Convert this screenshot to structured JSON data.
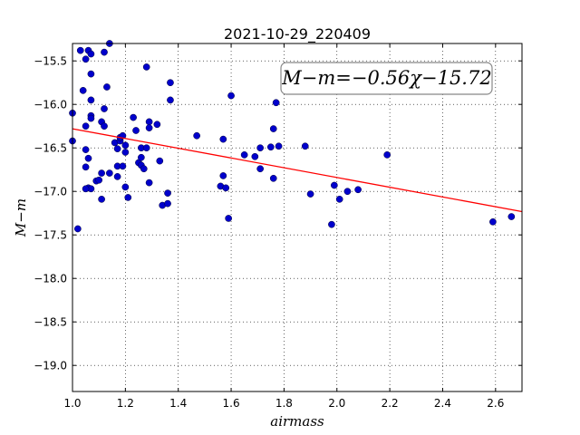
{
  "chart_data": {
    "type": "scatter",
    "title": "2021-10-29_220409",
    "xlabel": "airmass",
    "ylabel": "M−m",
    "xlim": [
      1.0,
      2.7
    ],
    "ylim": [
      -19.3,
      -15.3
    ],
    "y_inverted": true,
    "grid": true,
    "x_ticks": [
      1.0,
      1.2,
      1.4,
      1.6,
      1.8,
      2.0,
      2.2,
      2.4,
      2.6
    ],
    "x_tick_labels": [
      "1.0",
      "1.2",
      "1.4",
      "1.6",
      "1.8",
      "2.0",
      "2.2",
      "2.4",
      "2.6"
    ],
    "y_ticks": [
      -15.5,
      -16.0,
      -16.5,
      -17.0,
      -17.5,
      -18.0,
      -18.5,
      -19.0
    ],
    "y_tick_labels": [
      "−15.5",
      "−16.0",
      "−16.5",
      "−17.0",
      "−17.5",
      "−18.0",
      "−18.5",
      "−19.0"
    ],
    "annotation": "M−m=−0.56χ−15.72",
    "fit_line": {
      "slope": -0.56,
      "intercept": -15.72,
      "color": "#ff0000"
    },
    "point_color": "#0000cc",
    "points": [
      [
        1.0,
        -16.1
      ],
      [
        1.0,
        -16.42
      ],
      [
        1.03,
        -15.38
      ],
      [
        1.05,
        -15.48
      ],
      [
        1.06,
        -15.38
      ],
      [
        1.07,
        -15.42
      ],
      [
        1.12,
        -15.4
      ],
      [
        1.14,
        -15.3
      ],
      [
        1.04,
        -15.84
      ],
      [
        1.07,
        -15.65
      ],
      [
        1.13,
        -15.8
      ],
      [
        1.02,
        -17.43
      ],
      [
        1.07,
        -15.95
      ],
      [
        1.12,
        -16.05
      ],
      [
        1.07,
        -16.13
      ],
      [
        1.07,
        -16.16
      ],
      [
        1.11,
        -16.2
      ],
      [
        1.12,
        -16.25
      ],
      [
        1.05,
        -16.25
      ],
      [
        1.05,
        -16.52
      ],
      [
        1.06,
        -16.62
      ],
      [
        1.05,
        -16.72
      ],
      [
        1.06,
        -16.96
      ],
      [
        1.07,
        -16.97
      ],
      [
        1.05,
        -16.97
      ],
      [
        1.09,
        -16.88
      ],
      [
        1.1,
        -16.87
      ],
      [
        1.11,
        -16.79
      ],
      [
        1.14,
        -16.79
      ],
      [
        1.11,
        -17.09
      ],
      [
        1.16,
        -16.44
      ],
      [
        1.17,
        -16.51
      ],
      [
        1.18,
        -16.42
      ],
      [
        1.18,
        -16.38
      ],
      [
        1.19,
        -16.36
      ],
      [
        1.17,
        -16.71
      ],
      [
        1.17,
        -16.83
      ],
      [
        1.19,
        -16.71
      ],
      [
        1.2,
        -16.47
      ],
      [
        1.2,
        -16.55
      ],
      [
        1.2,
        -16.95
      ],
      [
        1.21,
        -17.07
      ],
      [
        1.23,
        -16.15
      ],
      [
        1.24,
        -16.3
      ],
      [
        1.25,
        -16.67
      ],
      [
        1.26,
        -16.5
      ],
      [
        1.26,
        -16.61
      ],
      [
        1.26,
        -16.7
      ],
      [
        1.27,
        -16.74
      ],
      [
        1.28,
        -16.5
      ],
      [
        1.29,
        -16.2
      ],
      [
        1.29,
        -16.27
      ],
      [
        1.29,
        -16.9
      ],
      [
        1.28,
        -15.57
      ],
      [
        1.32,
        -16.23
      ],
      [
        1.33,
        -16.65
      ],
      [
        1.34,
        -17.16
      ],
      [
        1.36,
        -17.14
      ],
      [
        1.36,
        -17.02
      ],
      [
        1.37,
        -15.75
      ],
      [
        1.37,
        -15.95
      ],
      [
        1.47,
        -16.36
      ],
      [
        1.56,
        -16.94
      ],
      [
        1.57,
        -16.82
      ],
      [
        1.57,
        -16.4
      ],
      [
        1.58,
        -16.96
      ],
      [
        1.59,
        -17.31
      ],
      [
        1.6,
        -15.9
      ],
      [
        1.65,
        -16.58
      ],
      [
        1.69,
        -16.6
      ],
      [
        1.71,
        -16.5
      ],
      [
        1.71,
        -16.74
      ],
      [
        1.75,
        -16.49
      ],
      [
        1.76,
        -16.28
      ],
      [
        1.76,
        -16.85
      ],
      [
        1.77,
        -15.98
      ],
      [
        1.78,
        -16.48
      ],
      [
        1.88,
        -16.48
      ],
      [
        1.9,
        -17.03
      ],
      [
        1.98,
        -17.38
      ],
      [
        1.99,
        -16.93
      ],
      [
        2.01,
        -17.09
      ],
      [
        2.04,
        -17.0
      ],
      [
        2.08,
        -16.98
      ],
      [
        2.19,
        -16.58
      ],
      [
        2.59,
        -17.35
      ],
      [
        2.66,
        -17.29
      ]
    ]
  }
}
